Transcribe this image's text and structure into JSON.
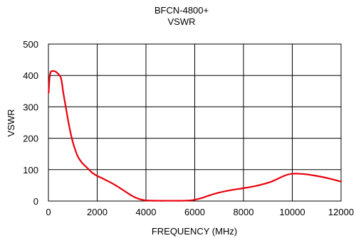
{
  "chart_data": {
    "type": "line",
    "title": "BFCN-4800+",
    "subtitle": "VSWR",
    "xlabel": "FREQUENCY (MHz)",
    "ylabel": "VSWR",
    "xlim": [
      0,
      12000
    ],
    "ylim": [
      0,
      500
    ],
    "x_ticks": [
      0,
      2000,
      4000,
      6000,
      8000,
      10000,
      12000
    ],
    "y_ticks": [
      0,
      100,
      200,
      300,
      400,
      500
    ],
    "x_tick_labels": [
      "0",
      "2000",
      "4000",
      "6000",
      "8000",
      "10000",
      "12000"
    ],
    "y_tick_labels": [
      "0",
      "100",
      "200",
      "300",
      "400",
      "500"
    ],
    "grid": true,
    "line_color": "#e8000b",
    "series": [
      {
        "x": [
          10,
          50,
          100,
          200,
          300,
          400,
          500,
          550,
          600,
          700,
          800,
          900,
          1000,
          1100,
          1200,
          1300,
          1400,
          1600,
          1800,
          2000,
          2200,
          2400,
          2600,
          2800,
          3000,
          3200,
          3400,
          3600,
          3800,
          4000,
          4500,
          5000,
          5500,
          5800,
          6000,
          6300,
          6600,
          7000,
          7500,
          8000,
          8500,
          9000,
          9300,
          9600,
          9800,
          10000,
          10300,
          10600,
          11000,
          11500,
          12000
        ],
        "y": [
          345,
          395,
          412,
          414,
          412,
          405,
          395,
          378,
          350,
          305,
          260,
          220,
          188,
          163,
          143,
          130,
          120,
          105,
          90,
          80,
          73,
          65,
          57,
          48,
          38,
          28,
          18,
          10,
          5,
          2,
          1,
          1,
          1,
          2,
          4,
          10,
          18,
          27,
          35,
          41,
          48,
          58,
          67,
          78,
          84,
          87,
          87,
          85,
          80,
          72,
          62
        ]
      }
    ]
  }
}
